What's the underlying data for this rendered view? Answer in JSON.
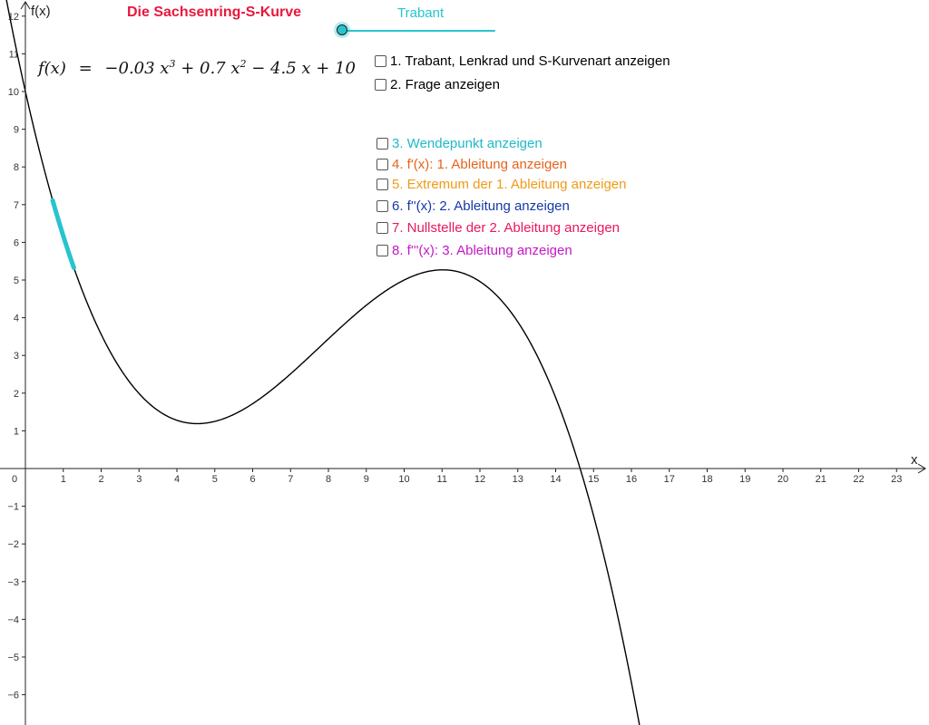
{
  "app": {
    "title": "Die Sachsenring-S-Kurve",
    "title_color": "#e8173c"
  },
  "formula": {
    "lhs": "f(x)",
    "eq": "=",
    "t1": "−0.03 x",
    "t1_exp": "3",
    "t2": " + 0.7 x",
    "t2_exp": "2",
    "t3": " − 4.5 x + 10"
  },
  "slider": {
    "label": "Trabant",
    "color": "#28c4ce",
    "value_fraction": 0
  },
  "checkboxes": [
    {
      "label": "1. Trabant, Lenkrad und S-Kurvenart anzeigen",
      "color": "#000000",
      "checked": false
    },
    {
      "label": "2. Frage anzeigen",
      "color": "#000000",
      "checked": false
    },
    {
      "label": "3. Wendepunkt anzeigen",
      "color": "#1fb9c7",
      "checked": false
    },
    {
      "label": "4. f'(x): 1. Ableitung anzeigen",
      "color": "#e4641b",
      "checked": false
    },
    {
      "label": "5. Extremum der 1. Ableitung anzeigen",
      "color": "#f09a16",
      "checked": false
    },
    {
      "label": "6. f''(x): 2. Ableitung anzeigen",
      "color": "#1438a8",
      "checked": false
    },
    {
      "label": "7. Nullstelle der 2. Ableitung anzeigen",
      "color": "#e8175d",
      "checked": false
    },
    {
      "label": "8. f'''(x): 3. Ableitung anzeigen",
      "color": "#c318c6",
      "checked": false
    }
  ],
  "axes": {
    "x_label": "x",
    "y_label": "f(x)",
    "origin_label": "0",
    "x_ticks": [
      1,
      2,
      3,
      4,
      5,
      6,
      7,
      8,
      9,
      10,
      11,
      12,
      13,
      14,
      15,
      16,
      17,
      18,
      19,
      20,
      21,
      22,
      23
    ],
    "y_ticks": [
      12,
      11,
      10,
      9,
      8,
      7,
      6,
      5,
      4,
      3,
      2,
      1,
      -1,
      -2,
      -3,
      -4,
      -5,
      -6
    ],
    "x_range": [
      -0.7,
      23.8
    ],
    "y_range": [
      -6.7,
      12.3
    ]
  },
  "curve": {
    "coefficients": [
      -0.03,
      0.7,
      -4.5,
      10
    ],
    "color": "#000000",
    "domain": [
      -0.7,
      16.3
    ]
  },
  "car_segment": {
    "x_from": 0.72,
    "x_to": 1.28,
    "color": "#28c4ce"
  }
}
